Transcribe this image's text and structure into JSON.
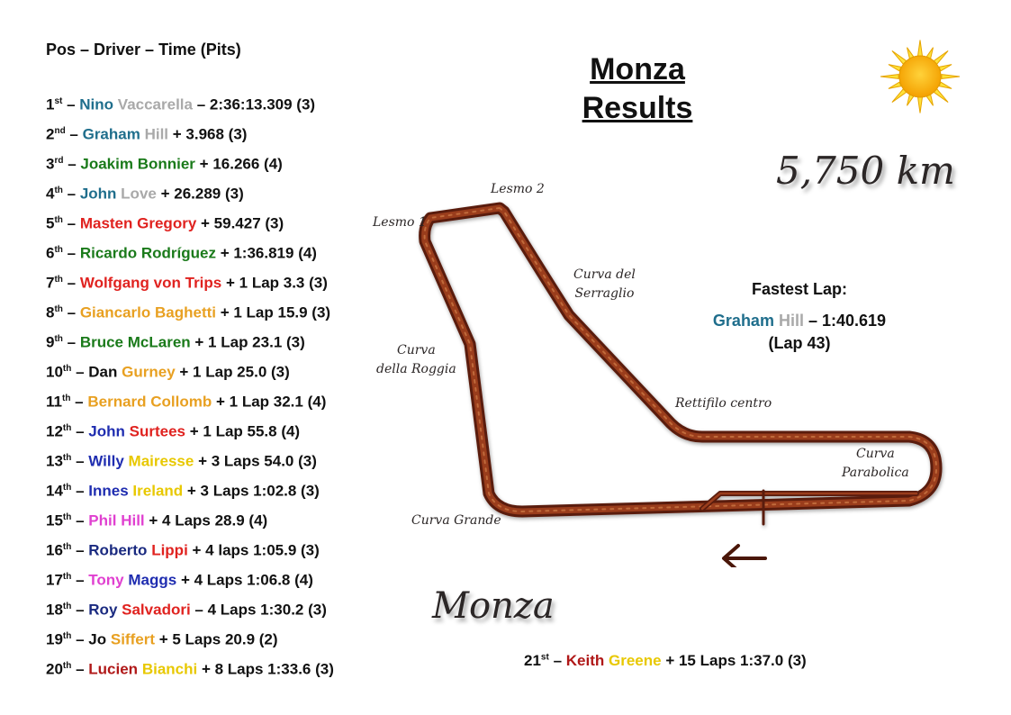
{
  "header": "Pos – Driver – Time (Pits)",
  "title": {
    "line1": "Monza",
    "line2": "Results"
  },
  "distance": "5,750 km",
  "track_name": "Monza",
  "corners": {
    "lesmo1": "Lesmo 1",
    "lesmo2": "Lesmo 2",
    "serraglio1": "Curva del",
    "serraglio2": "Serraglio",
    "roggia1": "Curva",
    "roggia2": "della Roggia",
    "rettifilo": "Rettifilo centro",
    "parabolica1": "Curva",
    "parabolica2": "Parabolica",
    "grande": "Curva Grande"
  },
  "colors": {
    "teal": "#1f6e8c",
    "grey": "#a9a9a9",
    "green": "#1a7a1a",
    "red": "#e0221f",
    "orange": "#e8a021",
    "blue": "#1f2db0",
    "yellow": "#e8c800",
    "magenta": "#e040d0",
    "navy": "#1a2a80",
    "darkred": "#b01818"
  },
  "results": [
    {
      "pos": "1",
      "suf": "st",
      "first": "Nino",
      "fc": "teal",
      "last": "Vaccarella",
      "lc": "grey",
      "sep": " – ",
      "result": "2:36:13.309 (3)"
    },
    {
      "pos": "2",
      "suf": "nd",
      "first": "Graham",
      "fc": "teal",
      "last": "Hill",
      "lc": "grey",
      "sep": " ",
      "result": "+ 3.968 (3)"
    },
    {
      "pos": "3",
      "suf": "rd",
      "first": "Joakim",
      "fc": "green",
      "last": "Bonnier",
      "lc": "green",
      "sep": " ",
      "result": "+ 16.266 (4)"
    },
    {
      "pos": "4",
      "suf": "th",
      "first": "John",
      "fc": "teal",
      "last": "Love",
      "lc": "grey",
      "sep": " ",
      "result": "+ 26.289 (3)"
    },
    {
      "pos": "5",
      "suf": "th",
      "first": "Masten",
      "fc": "red",
      "last": "Gregory",
      "lc": "red",
      "sep": " ",
      "result": "+ 59.427 (3)"
    },
    {
      "pos": "6",
      "suf": "th",
      "first": "Ricardo",
      "fc": "green",
      "last": "Rodríguez",
      "lc": "green",
      "sep": " ",
      "result": "+ 1:36.819 (4)"
    },
    {
      "pos": "7",
      "suf": "th",
      "first": "Wolfgang von",
      "fc": "red",
      "last": "Trips",
      "lc": "red",
      "sep": " ",
      "result": "+ 1 Lap 3.3 (3)"
    },
    {
      "pos": "8",
      "suf": "th",
      "first": "Giancarlo",
      "fc": "orange",
      "last": "Baghetti",
      "lc": "orange",
      "sep": " ",
      "result": "+ 1 Lap 15.9 (3)"
    },
    {
      "pos": "9",
      "suf": "th",
      "first": "Bruce",
      "fc": "green",
      "last": "McLaren",
      "lc": "green",
      "sep": " ",
      "result": "+ 1 Lap 23.1 (3)"
    },
    {
      "pos": "10",
      "suf": "th",
      "first": "Dan",
      "fc": "black",
      "last": "Gurney",
      "lc": "orange",
      "sep": " ",
      "result": "+ 1 Lap 25.0 (3)"
    },
    {
      "pos": "11",
      "suf": "th",
      "first": "Bernard",
      "fc": "orange",
      "last": "Collomb",
      "lc": "orange",
      "sep": " ",
      "result": "+ 1 Lap 32.1 (4)"
    },
    {
      "pos": "12",
      "suf": "th",
      "first": "John",
      "fc": "blue",
      "last": "Surtees",
      "lc": "red",
      "sep": " ",
      "result": "+ 1 Lap 55.8 (4)"
    },
    {
      "pos": "13",
      "suf": "th",
      "first": "Willy",
      "fc": "blue",
      "last": "Mairesse",
      "lc": "yellow",
      "sep": " ",
      "result": "+ 3 Laps 54.0 (3)"
    },
    {
      "pos": "14",
      "suf": "th",
      "first": "Innes",
      "fc": "blue",
      "last": "Ireland",
      "lc": "yellow",
      "sep": " ",
      "result": "+ 3 Laps 1:02.8 (3)"
    },
    {
      "pos": "15",
      "suf": "th",
      "first": "Phil",
      "fc": "magenta",
      "last": "Hill",
      "lc": "magenta",
      "sep": " ",
      "result": "+ 4 Laps 28.9 (4)"
    },
    {
      "pos": "16",
      "suf": "th",
      "first": "Roberto",
      "fc": "navy",
      "last": "Lippi",
      "lc": "red",
      "sep": " ",
      "result": "+ 4 laps 1:05.9 (3)"
    },
    {
      "pos": "17",
      "suf": "th",
      "first": "Tony",
      "fc": "magenta",
      "last": "Maggs",
      "lc": "blue",
      "sep": " ",
      "result": "+ 4 Laps 1:06.8 (4)"
    },
    {
      "pos": "18",
      "suf": "th",
      "first": "Roy",
      "fc": "navy",
      "last": "Salvadori",
      "lc": "red",
      "sep": " ",
      "result": "– 4 Laps 1:30.2 (3)"
    },
    {
      "pos": "19",
      "suf": "th",
      "first": "Jo",
      "fc": "black",
      "last": "Siffert",
      "lc": "orange",
      "sep": " ",
      "result": "+ 5 Laps 20.9 (2)"
    },
    {
      "pos": "20",
      "suf": "th",
      "first": "Lucien",
      "fc": "darkred",
      "last": "Bianchi",
      "lc": "yellow",
      "sep": " ",
      "result": "+ 8 Laps 1:33.6 (3)"
    }
  ],
  "extra": {
    "pos": "21",
    "suf": "st",
    "first": "Keith",
    "fc": "darkred",
    "last": "Greene",
    "lc": "yellow",
    "result": "+ 15 Laps 1:37.0 (3)"
  },
  "fastest": {
    "label": "Fastest Lap:",
    "first": "Graham",
    "fc": "teal",
    "last": "Hill",
    "lc": "grey",
    "time": "– 1:40.619",
    "lap": "(Lap 43)"
  }
}
